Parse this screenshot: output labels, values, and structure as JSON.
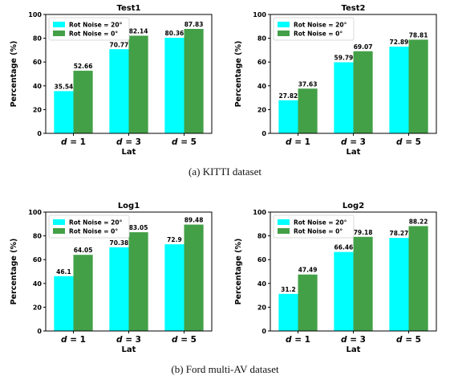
{
  "colors": {
    "rot20": "#00ffff",
    "rot0": "#43a047",
    "axis": "#000000"
  },
  "captions": {
    "kitti": "(a) KITTI dataset",
    "ford": "(b) Ford multi-AV dataset"
  },
  "chart_data": [
    {
      "type": "bar",
      "title": "Test1",
      "xlabel": "Lat",
      "ylabel": "Percentage (%)",
      "ylim": [
        0,
        100
      ],
      "yticks": [
        0,
        20,
        40,
        60,
        80,
        100
      ],
      "grid": false,
      "legend": "top-left",
      "categories": [
        {
          "sym": "d",
          "rest": " = 1"
        },
        {
          "sym": "d",
          "rest": " = 3"
        },
        {
          "sym": "d",
          "rest": " = 5"
        }
      ],
      "series": [
        {
          "name": "Rot Noise = 20°",
          "values": [
            35.54,
            70.77,
            80.36
          ]
        },
        {
          "name": "Rot Noise = 0°",
          "values": [
            52.66,
            82.14,
            87.83
          ]
        }
      ]
    },
    {
      "type": "bar",
      "title": "Test2",
      "xlabel": "Lat",
      "ylabel": "Percentage (%)",
      "ylim": [
        0,
        100
      ],
      "yticks": [
        0,
        20,
        40,
        60,
        80,
        100
      ],
      "grid": false,
      "legend": "top-left",
      "categories": [
        {
          "sym": "d",
          "rest": " = 1"
        },
        {
          "sym": "d",
          "rest": " = 3"
        },
        {
          "sym": "d",
          "rest": " = 5"
        }
      ],
      "series": [
        {
          "name": "Rot Noise = 20°",
          "values": [
            27.82,
            59.79,
            72.89
          ]
        },
        {
          "name": "Rot Noise = 0°",
          "values": [
            37.63,
            69.07,
            78.81
          ]
        }
      ]
    },
    {
      "type": "bar",
      "title": "Log1",
      "xlabel": "Lat",
      "ylabel": "Percentage (%)",
      "ylim": [
        0,
        100
      ],
      "yticks": [
        0,
        20,
        40,
        60,
        80,
        100
      ],
      "grid": false,
      "legend": "top-left",
      "categories": [
        {
          "sym": "d",
          "rest": " = 1"
        },
        {
          "sym": "d",
          "rest": " = 3"
        },
        {
          "sym": "d",
          "rest": " = 5"
        }
      ],
      "series": [
        {
          "name": "Rot Noise = 20°",
          "values": [
            46.1,
            70.38,
            72.9
          ]
        },
        {
          "name": "Rot Noise = 0°",
          "values": [
            64.05,
            83.05,
            89.48
          ]
        }
      ]
    },
    {
      "type": "bar",
      "title": "Log2",
      "xlabel": "Lat",
      "ylabel": "Percentage (%)",
      "ylim": [
        0,
        100
      ],
      "yticks": [
        0,
        20,
        40,
        60,
        80,
        100
      ],
      "grid": false,
      "legend": "top-left",
      "categories": [
        {
          "sym": "d",
          "rest": " = 1"
        },
        {
          "sym": "d",
          "rest": " = 3"
        },
        {
          "sym": "d",
          "rest": " = 5"
        }
      ],
      "series": [
        {
          "name": "Rot Noise = 20°",
          "values": [
            31.2,
            66.46,
            78.27
          ]
        },
        {
          "name": "Rot Noise = 0°",
          "values": [
            47.49,
            79.18,
            88.22
          ]
        }
      ]
    }
  ]
}
